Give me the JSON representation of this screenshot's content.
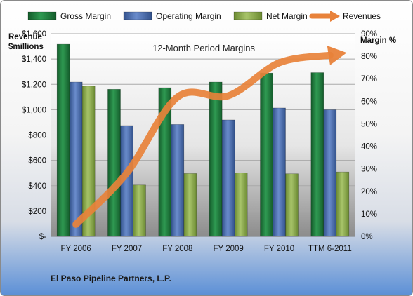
{
  "chart_data": {
    "type": "bar",
    "title": "12-Month Period Margins",
    "categories": [
      "FY 2006",
      "FY 2007",
      "FY 2008",
      "FY 2009",
      "FY 2010",
      "TTM 6-2011"
    ],
    "left_axis": {
      "label_line1": "Revenue",
      "label_line2": "$millions",
      "ticks": [
        "$-",
        "$200",
        "$400",
        "$600",
        "$800",
        "$1,000",
        "$1,200",
        "$1,400",
        "$1,600"
      ],
      "ylim": [
        0,
        1600
      ]
    },
    "right_axis": {
      "label": "Margin %",
      "ticks": [
        "0%",
        "10%",
        "20%",
        "30%",
        "40%",
        "50%",
        "60%",
        "70%",
        "80%",
        "90%"
      ],
      "ylim": [
        0,
        90
      ]
    },
    "series": [
      {
        "name": "Gross Margin",
        "axis": "right",
        "kind": "bar",
        "color": "#1f7a3e",
        "values": [
          85.3,
          65.3,
          66,
          68.5,
          72.5,
          72.7
        ]
      },
      {
        "name": "Operating Margin",
        "axis": "right",
        "kind": "bar",
        "color": "#4a6fb0",
        "values": [
          68.5,
          49.2,
          49.7,
          51.7,
          57,
          56.2
        ]
      },
      {
        "name": "Net Margin",
        "axis": "right",
        "kind": "bar",
        "color": "#8caa4a",
        "values": [
          66.7,
          22.8,
          27.9,
          28.2,
          27.8,
          28.6
        ]
      },
      {
        "name": "Revenues",
        "axis": "left",
        "kind": "line",
        "color": "#e8823a",
        "values": [
          95,
          500,
          1100,
          1110,
          1370,
          1430
        ]
      }
    ],
    "legend_position": "top",
    "grid": true
  },
  "footer": {
    "company": "El Paso Pipeline Partners, L.P."
  }
}
